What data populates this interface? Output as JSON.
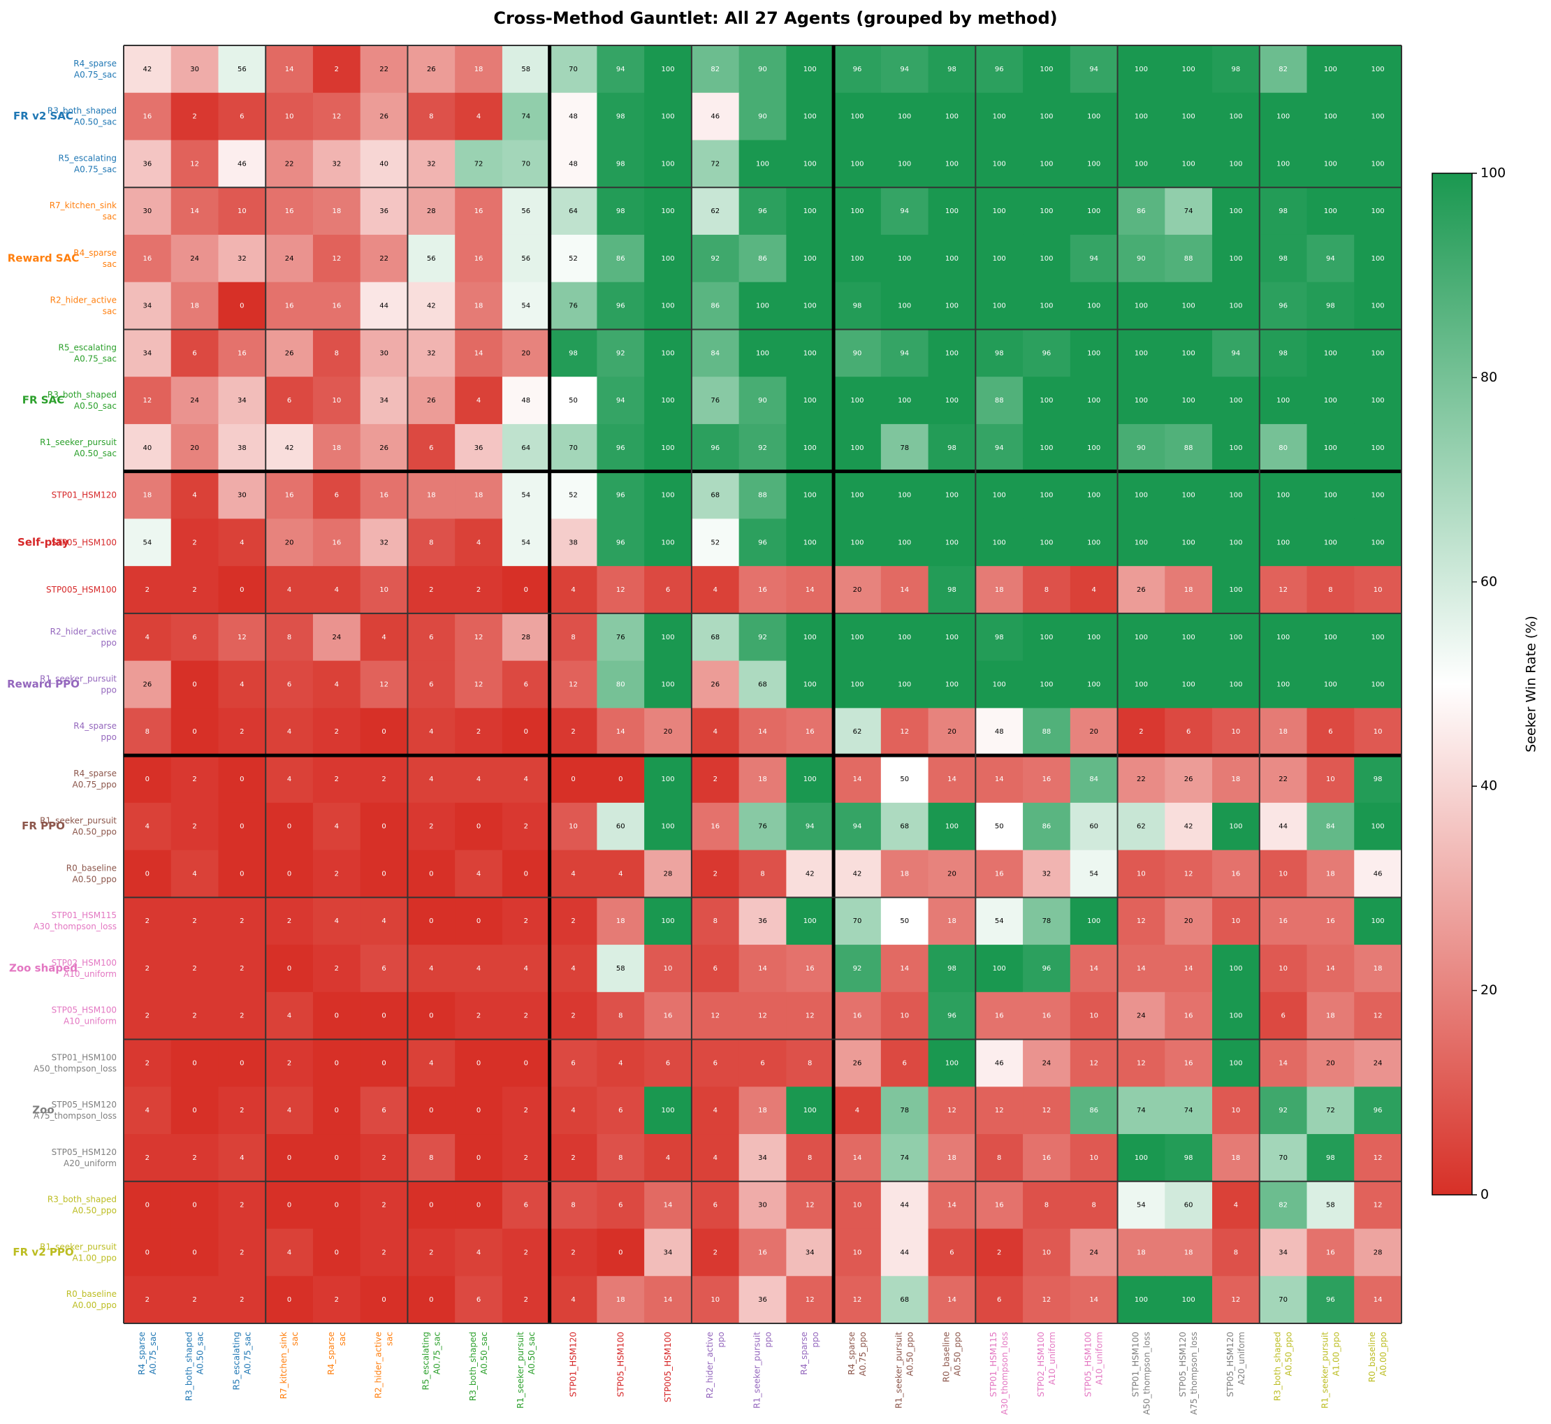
{
  "chart_data": {
    "type": "heatmap",
    "title": "Cross-Method Gauntlet: All 27 Agents (grouped by method)",
    "colorbar_label": "Seeker Win Rate (%)",
    "clim": [
      0,
      100
    ],
    "cbar_ticks": [
      0,
      20,
      40,
      60,
      80,
      100
    ],
    "colormap": [
      "#d73027",
      "#ffffff",
      "#1a9850"
    ],
    "major_separators": [
      9,
      15
    ],
    "groups": [
      {
        "name": "FR v2 SAC",
        "color": "#1f77b4",
        "members": [
          [
            "R4_sparse",
            "A0.75_sac"
          ],
          [
            "R3_both_shaped",
            "A0.50_sac"
          ],
          [
            "R5_escalating",
            "A0.75_sac"
          ]
        ]
      },
      {
        "name": "Reward SAC",
        "color": "#ff7f0e",
        "members": [
          [
            "R7_kitchen_sink",
            "sac"
          ],
          [
            "R4_sparse",
            "sac"
          ],
          [
            "R2_hider_active",
            "sac"
          ]
        ]
      },
      {
        "name": "FR SAC",
        "color": "#2ca02c",
        "members": [
          [
            "R5_escalating",
            "A0.75_sac"
          ],
          [
            "R3_both_shaped",
            "A0.50_sac"
          ],
          [
            "R1_seeker_pursuit",
            "A0.50_sac"
          ]
        ]
      },
      {
        "name": "Self-play",
        "color": "#d62728",
        "members": [
          [
            "STP01_HSM120"
          ],
          [
            "STP05_HSM100"
          ],
          [
            "STP005_HSM100"
          ]
        ]
      },
      {
        "name": "Reward PPO",
        "color": "#9467bd",
        "members": [
          [
            "R2_hider_active",
            "ppo"
          ],
          [
            "R1_seeker_pursuit",
            "ppo"
          ],
          [
            "R4_sparse",
            "ppo"
          ]
        ]
      },
      {
        "name": "FR PPO",
        "color": "#8c564b",
        "members": [
          [
            "R4_sparse",
            "A0.75_ppo"
          ],
          [
            "R1_seeker_pursuit",
            "A0.50_ppo"
          ],
          [
            "R0_baseline",
            "A0.50_ppo"
          ]
        ]
      },
      {
        "name": "Zoo shaped",
        "color": "#e377c2",
        "members": [
          [
            "STP01_HSM115",
            "A30_thompson_loss"
          ],
          [
            "STP02_HSM100",
            "A10_uniform"
          ],
          [
            "STP05_HSM100",
            "A10_uniform"
          ]
        ]
      },
      {
        "name": "Zoo",
        "color": "#7f7f7f",
        "members": [
          [
            "STP01_HSM100",
            "A50_thompson_loss"
          ],
          [
            "STP05_HSM120",
            "A75_thompson_loss"
          ],
          [
            "STP05_HSM120",
            "A20_uniform"
          ]
        ]
      },
      {
        "name": "FR v2 PPO",
        "color": "#bcbd22",
        "members": [
          [
            "R3_both_shaped",
            "A0.50_ppo"
          ],
          [
            "R1_seeker_pursuit",
            "A1.00_ppo"
          ],
          [
            "R0_baseline",
            "A0.00_ppo"
          ]
        ]
      }
    ],
    "values": [
      [
        42,
        30,
        56,
        14,
        2,
        22,
        26,
        18,
        58,
        70,
        94,
        100,
        82,
        90,
        100,
        96,
        94,
        98,
        96,
        100,
        94,
        100,
        100,
        98,
        82,
        100,
        100
      ],
      [
        16,
        2,
        6,
        10,
        12,
        26,
        8,
        4,
        74,
        48,
        98,
        100,
        46,
        90,
        100,
        100,
        100,
        100,
        100,
        100,
        100,
        100,
        100,
        100,
        100,
        100,
        100
      ],
      [
        36,
        12,
        46,
        22,
        32,
        40,
        32,
        72,
        70,
        48,
        98,
        100,
        72,
        100,
        100,
        100,
        100,
        100,
        100,
        100,
        100,
        100,
        100,
        100,
        100,
        100,
        100
      ],
      [
        30,
        14,
        10,
        16,
        18,
        36,
        28,
        16,
        56,
        64,
        98,
        100,
        62,
        96,
        100,
        100,
        94,
        100,
        100,
        100,
        100,
        86,
        74,
        100,
        98,
        100,
        100
      ],
      [
        16,
        24,
        32,
        24,
        12,
        22,
        56,
        16,
        56,
        52,
        86,
        100,
        92,
        86,
        100,
        100,
        100,
        100,
        100,
        100,
        94,
        90,
        88,
        100,
        98,
        94,
        100
      ],
      [
        34,
        18,
        0,
        16,
        16,
        44,
        42,
        18,
        54,
        76,
        96,
        100,
        86,
        100,
        100,
        98,
        100,
        100,
        100,
        100,
        100,
        100,
        100,
        100,
        96,
        98,
        100
      ],
      [
        34,
        6,
        16,
        26,
        8,
        30,
        32,
        14,
        20,
        98,
        92,
        100,
        84,
        100,
        100,
        90,
        94,
        100,
        98,
        96,
        100,
        100,
        100,
        94,
        98,
        100,
        100
      ],
      [
        12,
        24,
        34,
        6,
        10,
        34,
        26,
        4,
        48,
        50,
        94,
        100,
        76,
        90,
        100,
        100,
        100,
        100,
        88,
        100,
        100,
        100,
        100,
        100,
        100,
        100,
        100
      ],
      [
        40,
        20,
        38,
        42,
        18,
        26,
        6,
        36,
        64,
        70,
        96,
        100,
        96,
        92,
        100,
        100,
        78,
        98,
        94,
        100,
        100,
        90,
        88,
        100,
        80,
        100,
        100
      ],
      [
        18,
        4,
        30,
        16,
        6,
        16,
        18,
        18,
        54,
        52,
        96,
        100,
        68,
        88,
        100,
        100,
        100,
        100,
        100,
        100,
        100,
        100,
        100,
        100,
        100,
        100,
        100
      ],
      [
        54,
        2,
        4,
        20,
        16,
        32,
        8,
        4,
        54,
        38,
        96,
        100,
        52,
        96,
        100,
        100,
        100,
        100,
        100,
        100,
        100,
        100,
        100,
        100,
        100,
        100,
        100
      ],
      [
        2,
        2,
        0,
        4,
        4,
        10,
        2,
        2,
        0,
        4,
        12,
        6,
        4,
        16,
        14,
        20,
        14,
        98,
        18,
        8,
        4,
        26,
        18,
        100,
        12,
        8,
        10
      ],
      [
        4,
        6,
        12,
        8,
        24,
        4,
        6,
        12,
        28,
        8,
        76,
        100,
        68,
        92,
        100,
        100,
        100,
        100,
        98,
        100,
        100,
        100,
        100,
        100,
        100,
        100,
        100
      ],
      [
        26,
        0,
        4,
        6,
        4,
        12,
        6,
        12,
        6,
        12,
        80,
        100,
        26,
        68,
        100,
        100,
        100,
        100,
        100,
        100,
        100,
        100,
        100,
        100,
        100,
        100,
        100
      ],
      [
        8,
        0,
        2,
        4,
        2,
        0,
        4,
        2,
        0,
        2,
        14,
        20,
        4,
        14,
        16,
        62,
        12,
        20,
        48,
        88,
        20,
        2,
        6,
        10,
        18,
        6,
        10
      ],
      [
        0,
        2,
        0,
        4,
        2,
        2,
        4,
        4,
        4,
        0,
        0,
        100,
        2,
        18,
        100,
        14,
        50,
        14,
        14,
        16,
        84,
        22,
        26,
        18,
        22,
        10,
        98
      ],
      [
        4,
        2,
        0,
        0,
        4,
        0,
        2,
        0,
        2,
        10,
        60,
        100,
        16,
        76,
        94,
        94,
        68,
        100,
        50,
        86,
        60,
        62,
        42,
        100,
        44,
        84,
        100
      ],
      [
        0,
        4,
        0,
        0,
        2,
        0,
        0,
        4,
        0,
        4,
        4,
        28,
        2,
        8,
        42,
        42,
        18,
        20,
        16,
        32,
        54,
        10,
        12,
        16,
        10,
        18,
        46
      ],
      [
        2,
        2,
        2,
        2,
        4,
        4,
        0,
        0,
        2,
        2,
        18,
        100,
        8,
        36,
        100,
        70,
        50,
        18,
        54,
        78,
        100,
        12,
        20,
        10,
        16,
        16,
        100
      ],
      [
        2,
        2,
        2,
        0,
        2,
        6,
        4,
        4,
        4,
        4,
        58,
        10,
        6,
        14,
        16,
        92,
        14,
        98,
        100,
        96,
        14,
        14,
        14,
        100,
        10,
        14,
        18
      ],
      [
        2,
        2,
        2,
        4,
        0,
        0,
        0,
        2,
        2,
        2,
        8,
        16,
        12,
        12,
        12,
        16,
        10,
        96,
        16,
        16,
        10,
        24,
        16,
        100,
        6,
        18,
        12
      ],
      [
        2,
        0,
        0,
        2,
        0,
        0,
        4,
        0,
        0,
        6,
        4,
        6,
        6,
        6,
        8,
        26,
        6,
        100,
        46,
        24,
        12,
        12,
        16,
        100,
        14,
        20,
        24
      ],
      [
        4,
        0,
        2,
        4,
        0,
        6,
        0,
        0,
        2,
        4,
        6,
        100,
        4,
        18,
        100,
        4,
        78,
        12,
        12,
        12,
        86,
        74,
        74,
        10,
        92,
        72,
        96
      ],
      [
        2,
        2,
        4,
        0,
        0,
        2,
        8,
        0,
        2,
        2,
        8,
        4,
        4,
        34,
        8,
        14,
        74,
        18,
        8,
        16,
        10,
        100,
        98,
        18,
        70,
        98,
        12
      ],
      [
        0,
        0,
        2,
        0,
        0,
        2,
        0,
        0,
        6,
        8,
        6,
        14,
        6,
        30,
        12,
        10,
        44,
        14,
        16,
        8,
        8,
        54,
        60,
        4,
        82,
        58,
        12
      ],
      [
        0,
        0,
        2,
        4,
        0,
        2,
        2,
        4,
        2,
        2,
        0,
        34,
        2,
        16,
        34,
        10,
        44,
        6,
        2,
        10,
        24,
        18,
        18,
        8,
        34,
        16,
        28
      ],
      [
        2,
        2,
        2,
        0,
        2,
        0,
        0,
        6,
        2,
        4,
        18,
        14,
        10,
        36,
        12,
        12,
        68,
        14,
        6,
        12,
        14,
        100,
        100,
        12,
        70,
        96,
        14
      ]
    ]
  }
}
